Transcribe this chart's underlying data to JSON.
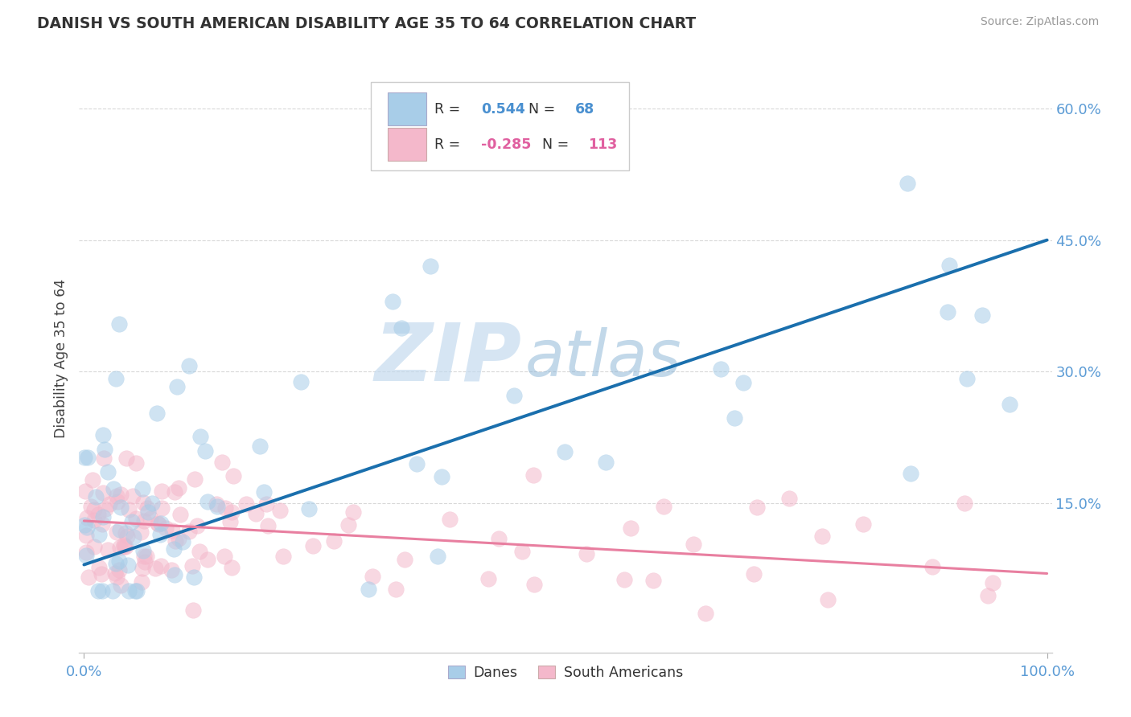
{
  "title": "DANISH VS SOUTH AMERICAN DISABILITY AGE 35 TO 64 CORRELATION CHART",
  "source": "Source: ZipAtlas.com",
  "ylabel": "Disability Age 35 to 64",
  "ylim": [
    -0.02,
    0.65
  ],
  "xlim": [
    -0.005,
    1.005
  ],
  "yticks": [
    0.15,
    0.3,
    0.45,
    0.6
  ],
  "ytick_labels": [
    "15.0%",
    "30.0%",
    "45.0%",
    "60.0%"
  ],
  "xtick_labels": [
    "0.0%",
    "100.0%"
  ],
  "r1": "0.544",
  "n1": "68",
  "r2": "-0.285",
  "n2": "113",
  "blue_scatter": "#a8cde8",
  "pink_scatter": "#f4b8cb",
  "blue_line": "#1a6fad",
  "pink_line": "#e87fa0",
  "grid_color": "#d8d8d8",
  "watermark_blue": "#b8d4ea",
  "watermark_gray": "#a0bcd8",
  "legend_r1_color": "#4a90d0",
  "legend_r2_color": "#e060a0",
  "legend_text_color": "#333333",
  "axis_tick_color": "#5b9bd5",
  "title_color": "#333333",
  "source_color": "#999999",
  "blue_legend_patch": "#a8cde8",
  "pink_legend_patch": "#f4b8cb"
}
